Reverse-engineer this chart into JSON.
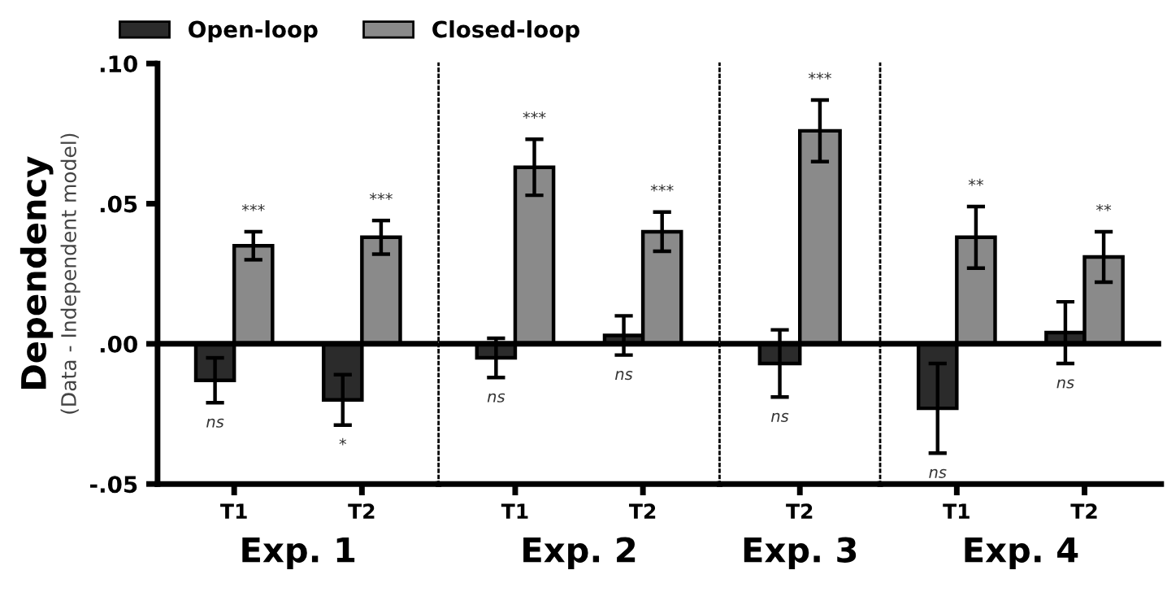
{
  "chart_data": [
    {
      "type": "bar",
      "xlabel": "Exp. 1",
      "ylabel": "Dependency\n(Data - Independent model)",
      "categories": [
        "T1",
        "T2"
      ],
      "legend": "top",
      "series": [
        {
          "name": "Open-loop",
          "color": "#2b2b2b",
          "values": [
            -0.013,
            -0.02
          ],
          "errors": [
            0.008,
            0.009
          ]
        },
        {
          "name": "Closed-loop",
          "color": "#8a8a8a",
          "values": [
            0.035,
            0.038
          ],
          "errors": [
            0.005,
            0.006
          ]
        }
      ],
      "ylim": [
        -0.05,
        0.1
      ],
      "yticks": [
        {
          "value": -0.05,
          "label": "-.05"
        },
        {
          "value": 0,
          "label": ".00"
        },
        {
          "value": 0.05,
          "label": ".05"
        },
        {
          "value": 0.1,
          "label": ".10"
        }
      ],
      "ref_lines": [
        {
          "axis": "y",
          "value": 0
        }
      ],
      "annotations": [
        "ns",
        "***",
        "*",
        "***"
      ]
    },
    {
      "type": "bar",
      "xlabel": "Exp. 2",
      "categories": [
        "T1",
        "T2"
      ],
      "tick_labels": "x",
      "series": [
        {
          "color": "#2b2b2b",
          "values": [
            -0.005,
            0.003
          ],
          "errors": [
            0.007,
            0.007
          ]
        },
        {
          "color": "#8a8a8a",
          "values": [
            0.063,
            0.04
          ],
          "errors": [
            0.01,
            0.007
          ]
        }
      ],
      "ylim": [
        -0.05,
        0.1
      ],
      "ref_lines": [
        {
          "axis": "y",
          "value": 0
        }
      ],
      "annotations": [
        "ns",
        "***",
        "ns",
        "***"
      ]
    },
    {
      "type": "bar",
      "xlabel": "Exp. 3",
      "categories": [
        "T2"
      ],
      "tick_labels": "x",
      "series": [
        {
          "color": "#2b2b2b",
          "values": [
            -0.007
          ],
          "errors": [
            0.012
          ]
        },
        {
          "color": "#8a8a8a",
          "values": [
            0.076
          ],
          "errors": [
            0.011
          ]
        }
      ],
      "ylim": [
        -0.05,
        0.1
      ],
      "ref_lines": [
        {
          "axis": "y",
          "value": 0
        }
      ],
      "annotations": [
        "ns",
        "***"
      ]
    },
    {
      "type": "bar",
      "xlabel": "Exp. 4",
      "categories": [
        "T1",
        "T2"
      ],
      "tick_labels": "x",
      "series": [
        {
          "color": "#2b2b2b",
          "values": [
            -0.023,
            0.004
          ],
          "errors": [
            0.016,
            0.011
          ]
        },
        {
          "color": "#8a8a8a",
          "values": [
            0.038,
            0.031
          ],
          "errors": [
            0.011,
            0.009
          ]
        }
      ],
      "ylim": [
        -0.05,
        0.1
      ],
      "ref_lines": [
        {
          "axis": "y",
          "value": 0
        }
      ],
      "annotations": [
        "ns",
        "**",
        "ns",
        "**"
      ]
    }
  ]
}
